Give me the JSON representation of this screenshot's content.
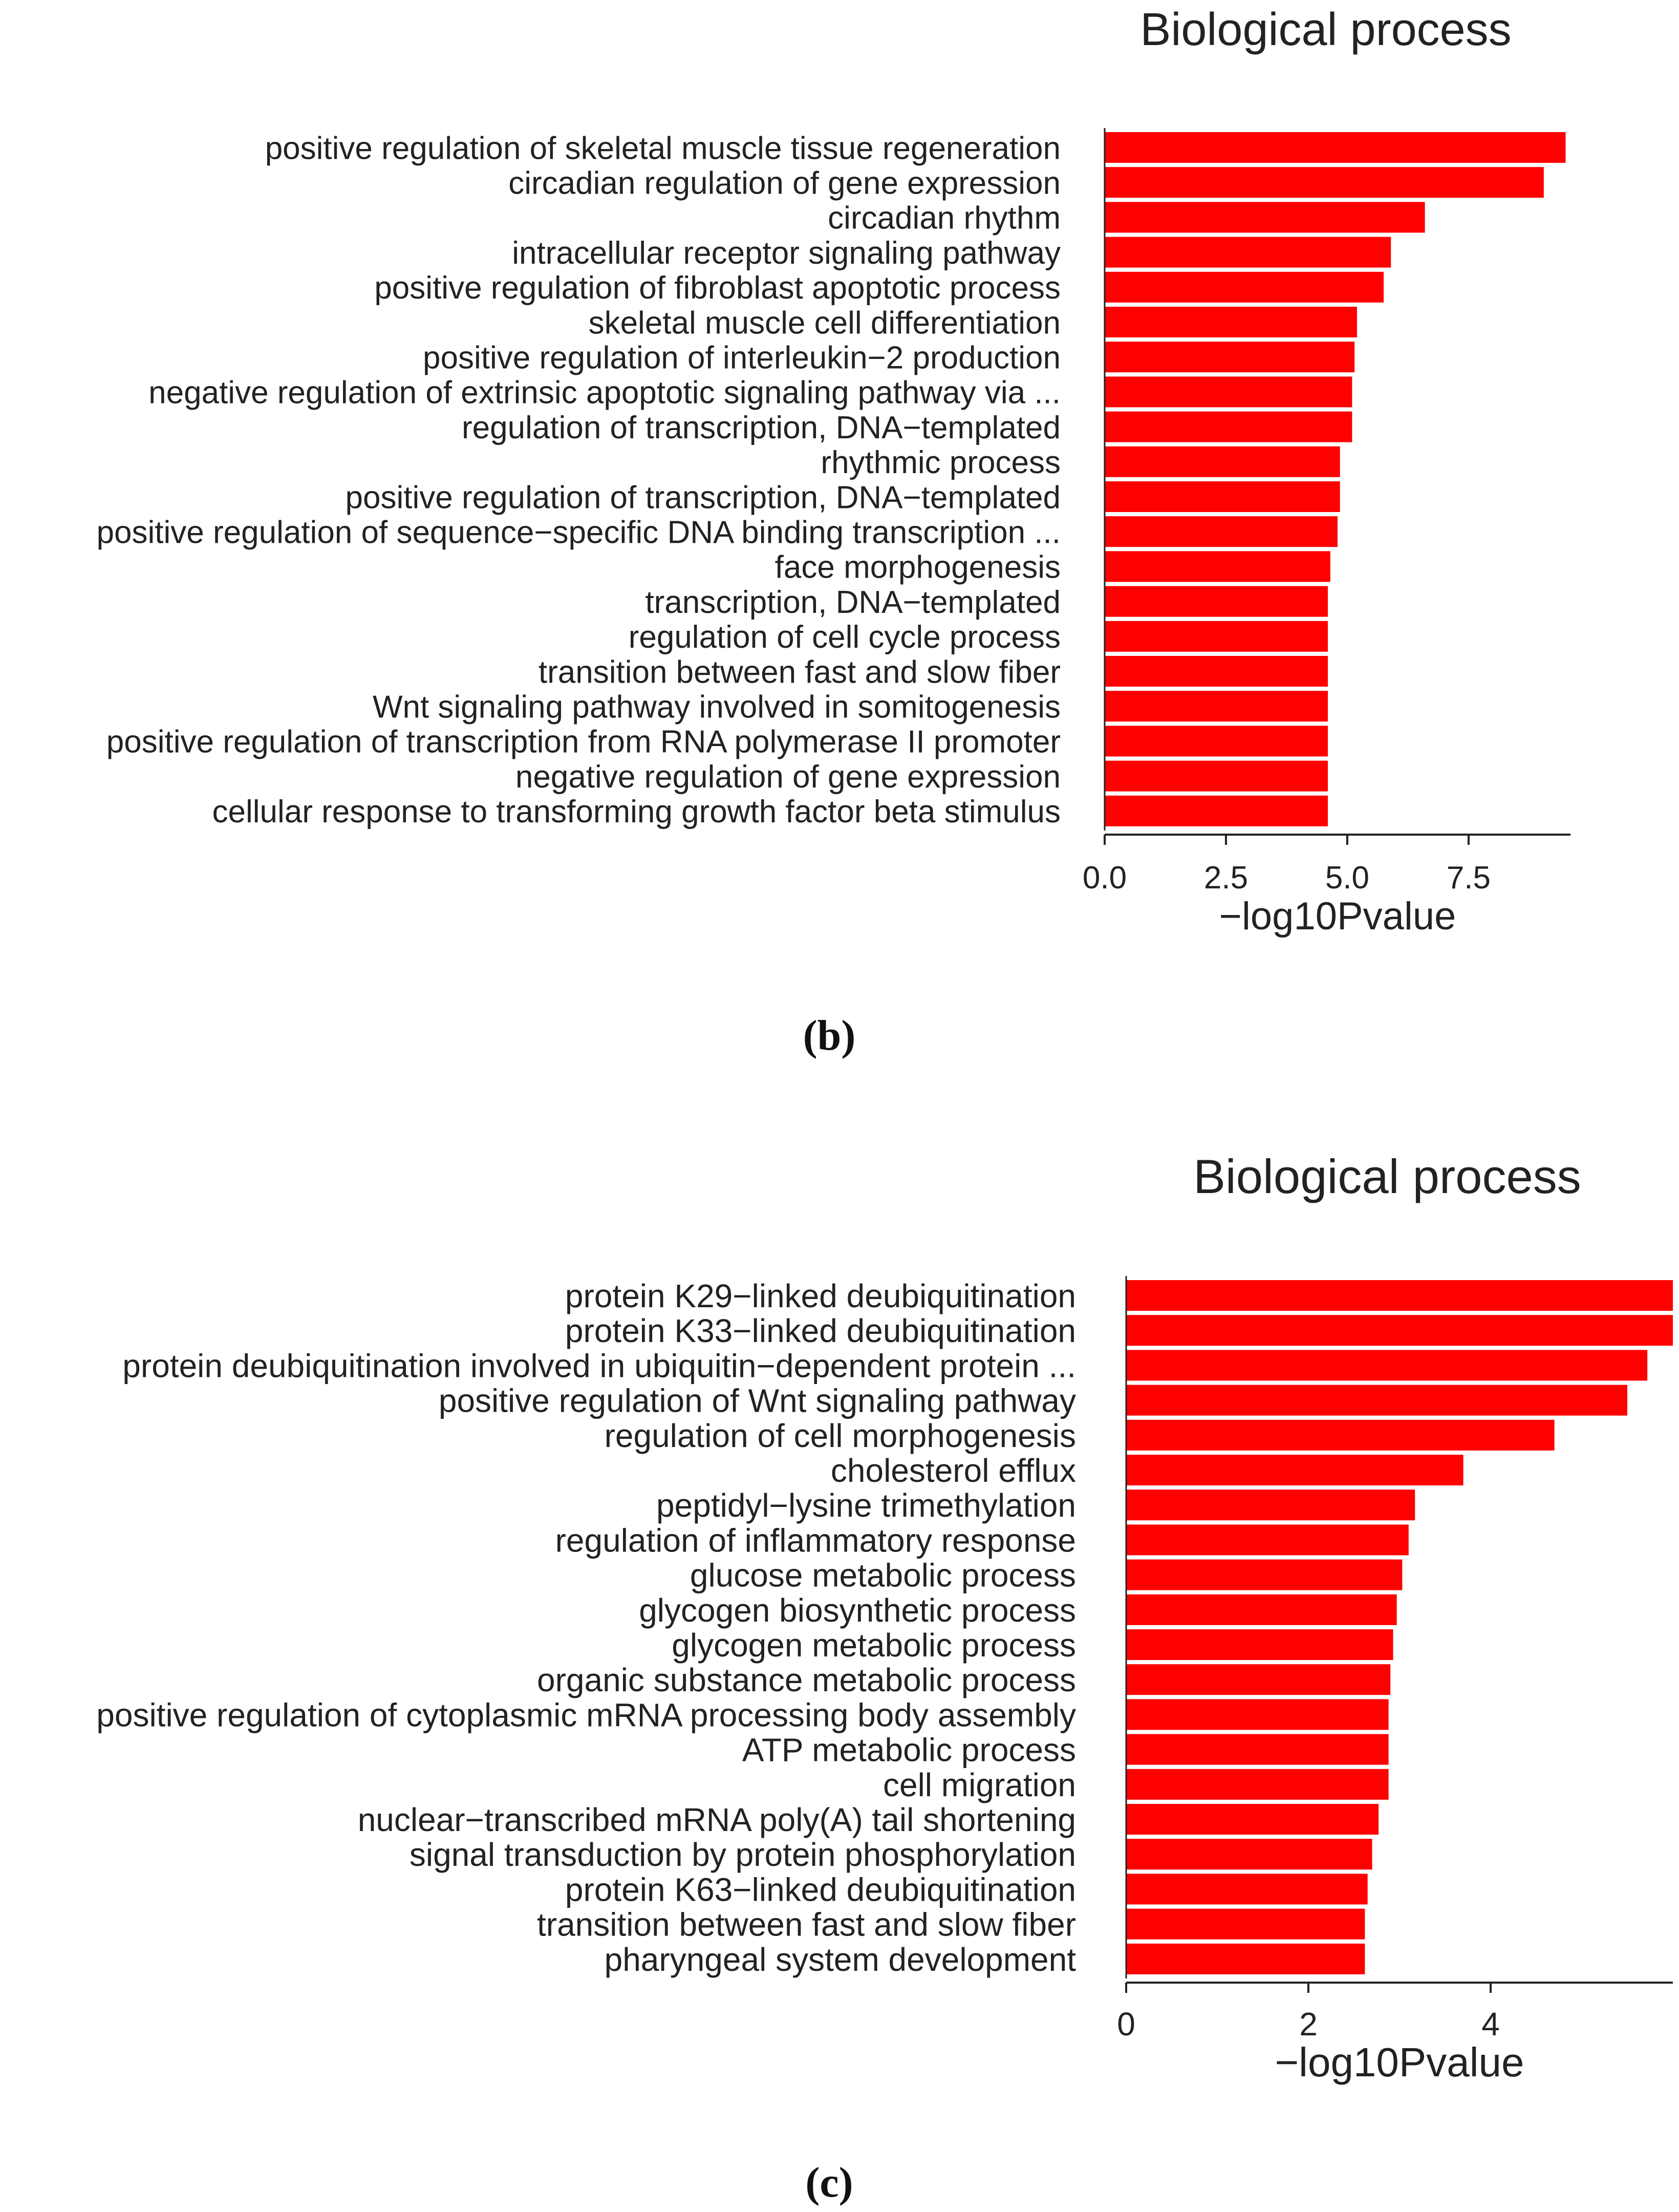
{
  "chart_data": [
    {
      "type": "bar",
      "orientation": "horizontal",
      "panel": "(b)",
      "title": "Biological process",
      "xlabel": "−log10Pvalue",
      "ylabel": "",
      "xlim": [
        0,
        9.6
      ],
      "xticks": [
        "0.0",
        "2.5",
        "5.0",
        "7.5"
      ],
      "xtick_values": [
        0,
        2.5,
        5.0,
        7.5
      ],
      "bar_color": "#ff0000",
      "grid": false,
      "categories": [
        "positive regulation of skeletal muscle tissue regeneration",
        "circadian regulation of gene expression",
        "circadian rhythm",
        "intracellular receptor signaling pathway",
        "positive regulation of fibroblast apoptotic process",
        "skeletal muscle cell differentiation",
        "positive regulation of interleukin−2 production",
        "negative regulation of extrinsic apoptotic signaling pathway via ...",
        "regulation of transcription, DNA−templated",
        "rhythmic process",
        "positive regulation of transcription, DNA−templated",
        "positive regulation of sequence−specific DNA binding transcription ...",
        "face morphogenesis",
        "transcription, DNA−templated",
        "regulation of cell cycle process",
        "transition between fast and slow fiber",
        "Wnt signaling pathway involved in somitogenesis",
        "positive regulation of transcription from RNA polymerase II promoter",
        "negative regulation of gene expression",
        "cellular response to transforming growth factor beta stimulus"
      ],
      "values": [
        9.5,
        9.05,
        6.6,
        5.9,
        5.75,
        5.2,
        5.15,
        5.1,
        5.1,
        4.85,
        4.85,
        4.8,
        4.65,
        4.6,
        4.6,
        4.6,
        4.6,
        4.6,
        4.6,
        4.6
      ]
    },
    {
      "type": "bar",
      "orientation": "horizontal",
      "panel": "(c)",
      "title": "Biological process",
      "xlabel": "−log10Pvalue",
      "ylabel": "",
      "xlim": [
        0,
        6.0
      ],
      "xticks": [
        "0",
        "2",
        "4"
      ],
      "xtick_values": [
        0,
        2,
        4
      ],
      "bar_color": "#ff0000",
      "grid": false,
      "categories": [
        "protein K29−linked deubiquitination",
        "protein K33−linked deubiquitination",
        "protein deubiquitination involved in ubiquitin−dependent protein ...",
        "positive regulation of Wnt signaling pathway",
        "regulation of cell morphogenesis",
        "cholesterol efflux",
        "peptidyl−lysine trimethylation",
        "regulation of inflammatory response",
        "glucose metabolic process",
        "glycogen biosynthetic process",
        "glycogen metabolic process",
        "organic substance metabolic process",
        "positive regulation of cytoplasmic mRNA processing body assembly",
        "ATP metabolic process",
        "cell migration",
        "nuclear−transcribed mRNA poly(A) tail shortening",
        "signal transduction by protein phosphorylation",
        "protein K63−linked deubiquitination",
        "transition between fast and slow fiber",
        "pharyngeal system development"
      ],
      "values": [
        6.0,
        6.0,
        5.72,
        5.5,
        4.7,
        3.7,
        3.17,
        3.1,
        3.03,
        2.97,
        2.93,
        2.9,
        2.88,
        2.88,
        2.88,
        2.77,
        2.7,
        2.65,
        2.62,
        2.62
      ]
    }
  ]
}
